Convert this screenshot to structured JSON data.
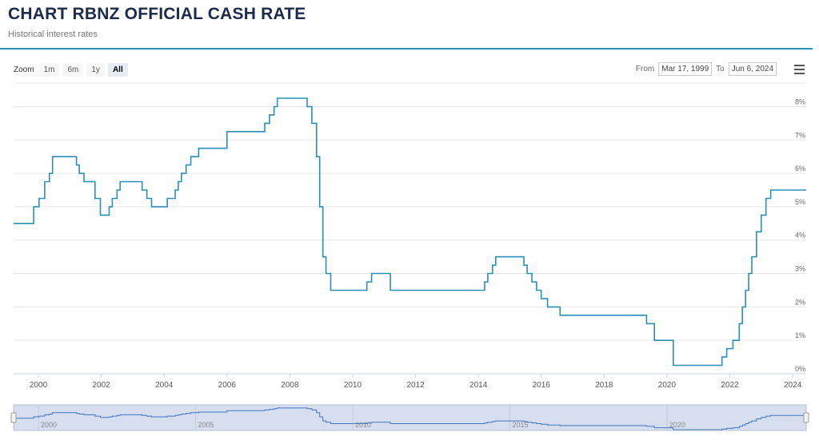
{
  "header": {
    "title": "CHART RBNZ OFFICIAL CASH RATE",
    "subtitle": "Historical interest rates"
  },
  "toolbar": {
    "zoom_label": "Zoom",
    "zoom_buttons": [
      {
        "label": "1m",
        "active": false
      },
      {
        "label": "6m",
        "active": false
      },
      {
        "label": "1y",
        "active": false
      },
      {
        "label": "All",
        "active": true
      }
    ],
    "from_label": "From",
    "from_value": "Mar 17, 1999",
    "to_label": "To",
    "to_value": "Jun 6, 2024",
    "menu_icon": "hamburger-menu-icon"
  },
  "colors": {
    "line": "#2a8fb8",
    "navigator_fill": "#d6deef",
    "title": "#1b2b4b"
  },
  "chart_data": {
    "type": "line",
    "step": true,
    "series": [
      {
        "x": [
          1999.21,
          1999.85,
          2000.02,
          2000.2,
          2000.35,
          2000.45,
          2000.58,
          2001.21,
          2001.3,
          2001.45,
          2001.8,
          2001.97,
          2002.25,
          2002.35,
          2002.5,
          2002.6,
          2003.3,
          2003.45,
          2003.6,
          2004.1,
          2004.35,
          2004.45,
          2004.55,
          2004.7,
          2004.85,
          2005.1,
          2005.4,
          2006.0,
          2007.2,
          2007.35,
          2007.5,
          2007.6,
          2008.55,
          2008.7,
          2008.85,
          2008.95,
          2009.05,
          2009.15,
          2009.3,
          2010.45,
          2010.6,
          2011.2,
          2014.2,
          2014.3,
          2014.45,
          2014.55,
          2015.45,
          2015.55,
          2015.7,
          2015.85,
          2016.0,
          2016.2,
          2016.6,
          2016.85,
          2019.35,
          2019.6,
          2020.2,
          2021.75,
          2021.9,
          2022.1,
          2022.3,
          2022.4,
          2022.5,
          2022.6,
          2022.7,
          2022.85,
          2023.0,
          2023.15,
          2023.3,
          2023.45,
          2024.43
        ],
        "y": [
          4.5,
          5.0,
          5.25,
          5.75,
          6.0,
          6.5,
          6.5,
          6.25,
          6.0,
          5.75,
          5.25,
          4.75,
          5.0,
          5.25,
          5.5,
          5.75,
          5.5,
          5.25,
          5.0,
          5.25,
          5.5,
          5.75,
          6.0,
          6.25,
          6.5,
          6.75,
          6.75,
          7.25,
          7.5,
          7.75,
          8.0,
          8.25,
          8.0,
          7.5,
          6.5,
          5.0,
          3.5,
          3.0,
          2.5,
          2.75,
          3.0,
          2.5,
          2.75,
          3.0,
          3.25,
          3.5,
          3.25,
          3.0,
          2.75,
          2.5,
          2.25,
          2.0,
          1.75,
          1.75,
          1.5,
          1.0,
          0.25,
          0.5,
          0.75,
          1.0,
          1.5,
          2.0,
          2.5,
          3.0,
          3.5,
          4.25,
          4.75,
          5.25,
          5.5,
          5.5,
          5.5
        ]
      }
    ],
    "yticks": [
      "0%",
      "1%",
      "2%",
      "3%",
      "4%",
      "5%",
      "6%",
      "7%",
      "8%"
    ],
    "ytick_values": [
      0,
      1,
      2,
      3,
      4,
      5,
      6,
      7,
      8
    ],
    "xticks": [
      "2000",
      "2002",
      "2004",
      "2006",
      "2008",
      "2010",
      "2012",
      "2014",
      "2016",
      "2018",
      "2020",
      "2022",
      "2024"
    ],
    "xtick_values": [
      2000,
      2002,
      2004,
      2006,
      2008,
      2010,
      2012,
      2014,
      2016,
      2018,
      2020,
      2022,
      2024
    ],
    "navigator_ticks": [
      "2000",
      "2005",
      "2010",
      "2015",
      "2020"
    ],
    "navigator_tick_values": [
      2000,
      2005,
      2010,
      2015,
      2020
    ],
    "xlim": [
      1999.21,
      2024.43
    ],
    "ylim": [
      0,
      8.8
    ],
    "grid": true
  }
}
